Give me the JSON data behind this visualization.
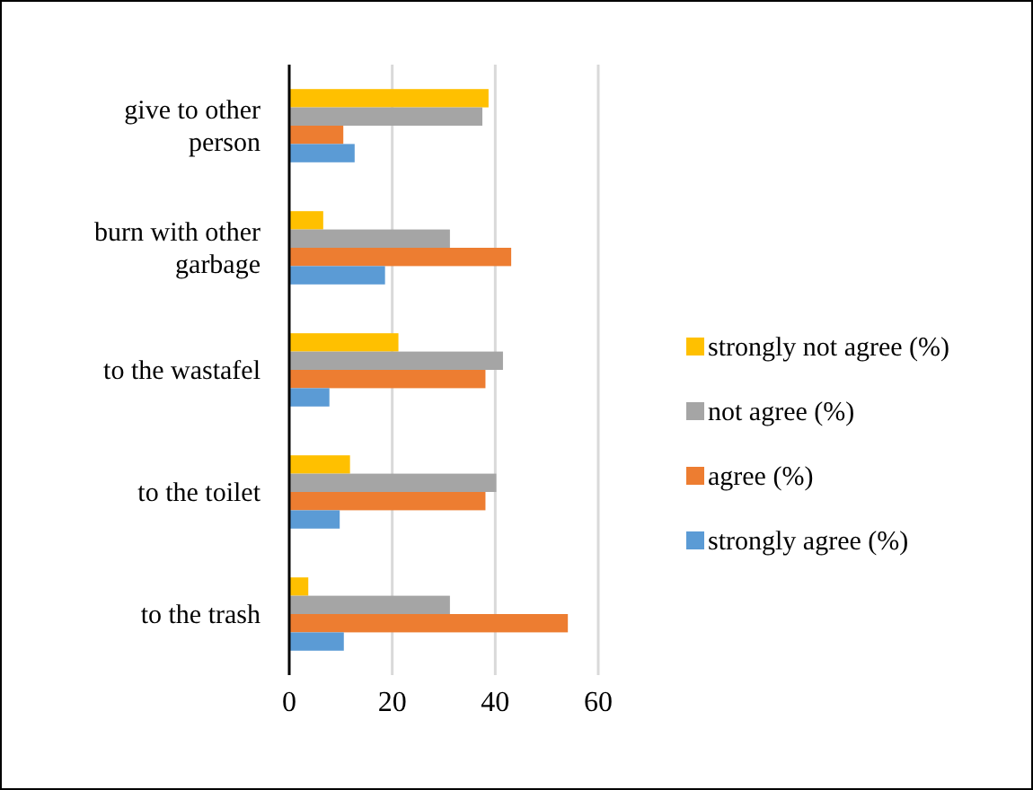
{
  "chart_data": {
    "type": "bar",
    "orientation": "horizontal",
    "categories": [
      "give to other person",
      "burn with other garbage",
      "to the wastafel",
      "to the toilet",
      "to the trash"
    ],
    "series": [
      {
        "name": "strongly not agree (%)",
        "color": "#ffc000",
        "values": [
          38.7,
          6.6,
          21.2,
          11.8,
          3.7
        ]
      },
      {
        "name": "not agree (%)",
        "color": "#a5a5a5",
        "values": [
          37.5,
          31.2,
          41.5,
          40.2,
          31.2
        ]
      },
      {
        "name": "agree (%)",
        "color": "#ed7d31",
        "values": [
          10.5,
          43.1,
          38.1,
          38.1,
          54.1
        ]
      },
      {
        "name": "strongly agree (%)",
        "color": "#5b9bd5",
        "values": [
          12.7,
          18.6,
          7.8,
          9.8,
          10.6
        ]
      }
    ],
    "xlim": [
      0,
      60
    ],
    "xticks": [
      0,
      20,
      40,
      60
    ],
    "grid": "x",
    "legend": "right"
  }
}
